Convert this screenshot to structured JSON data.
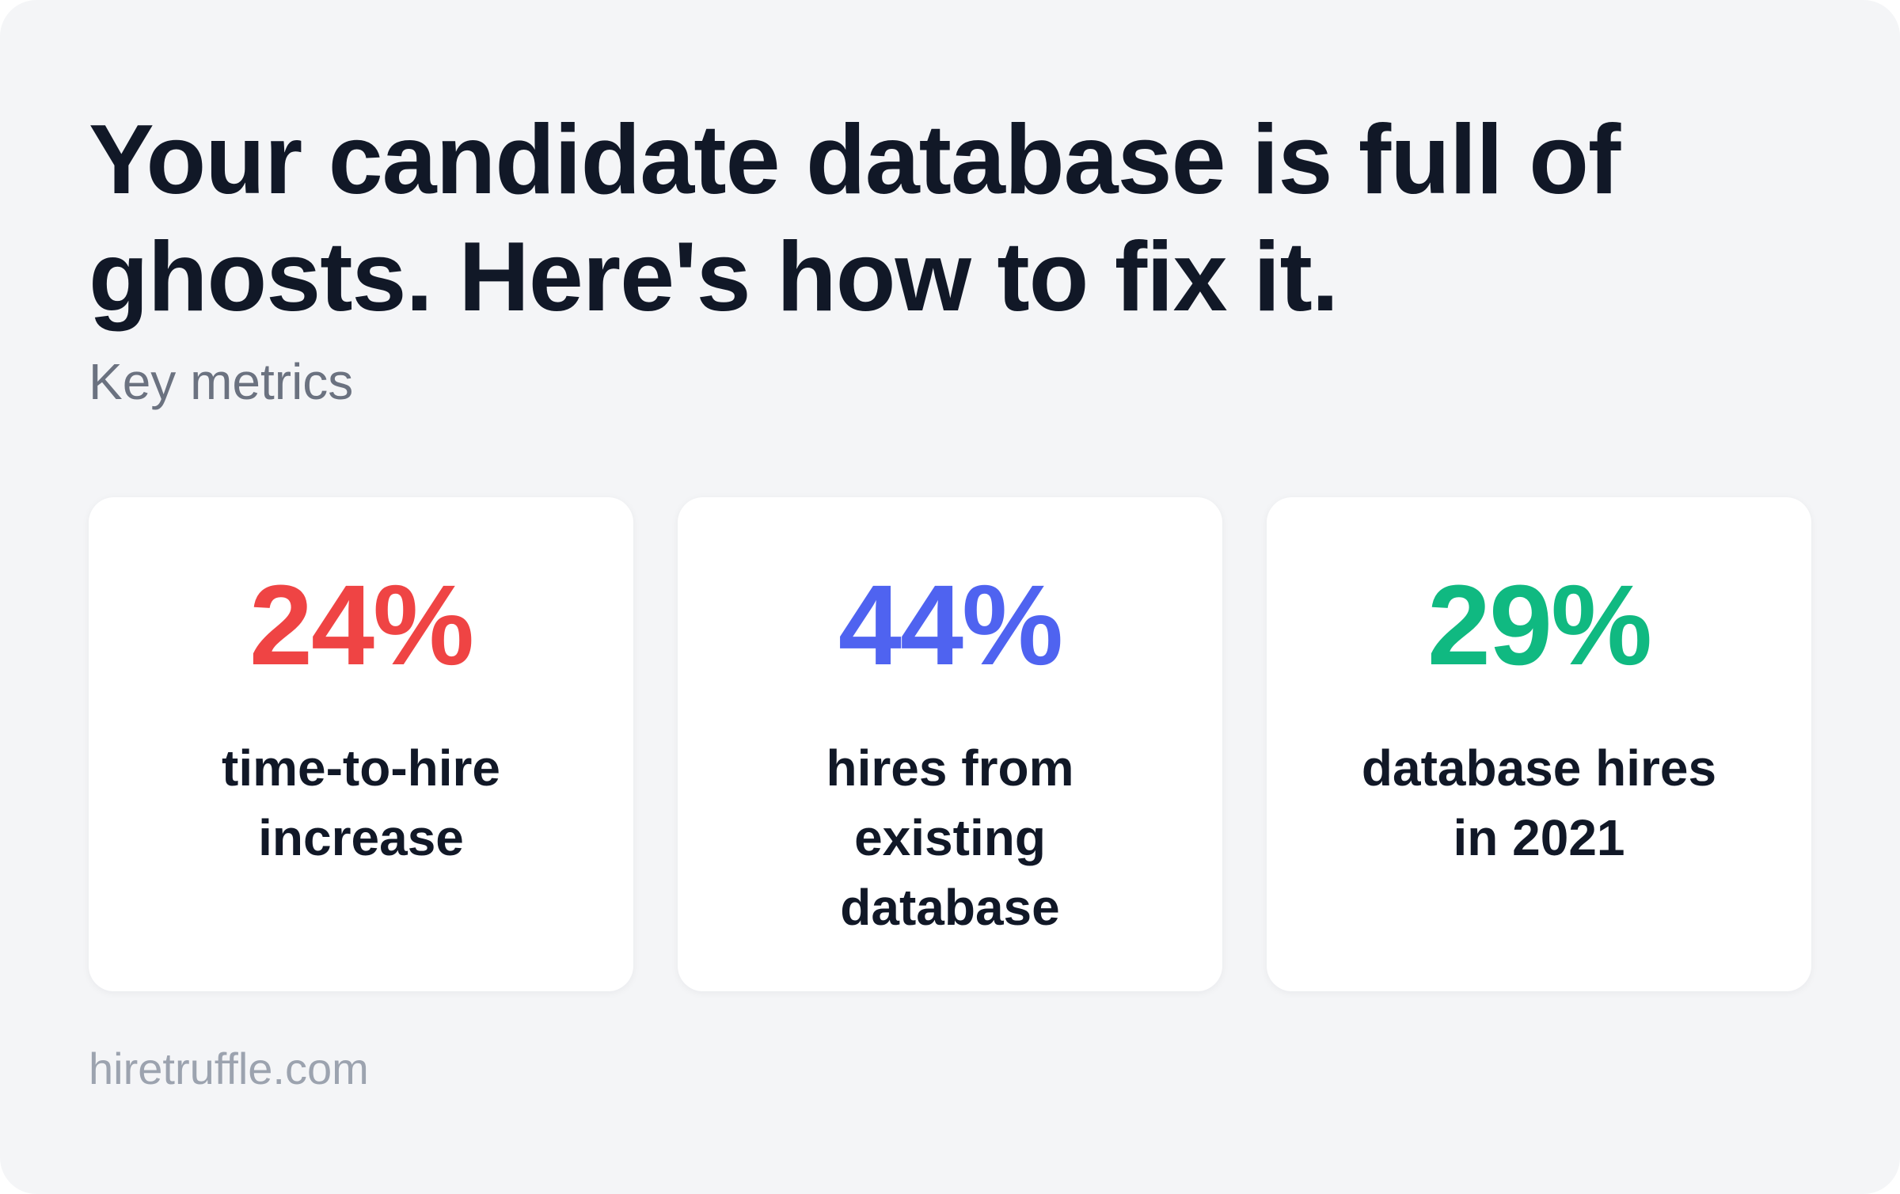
{
  "header": {
    "title": "Your candidate database is full of ghosts. Here's how to fix it.",
    "subtitle": "Key metrics"
  },
  "metrics": [
    {
      "value": "24%",
      "label": "time-to-hire increase",
      "color": "#ef4444"
    },
    {
      "value": "44%",
      "label": "hires from existing database",
      "color": "#4f63f0"
    },
    {
      "value": "29%",
      "label": "database hires in 2021",
      "color": "#10b981"
    }
  ],
  "footer": {
    "source": "hiretruffle.com"
  },
  "colors": {
    "background": "#f4f5f7",
    "card": "#ffffff",
    "text": "#111827",
    "muted": "#6b7280",
    "footer": "#9ca3af"
  }
}
